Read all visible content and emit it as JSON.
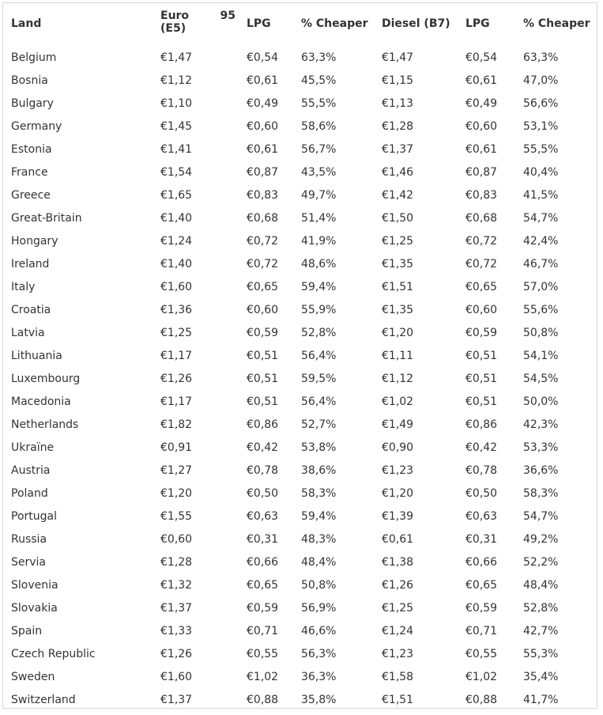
{
  "headers": {
    "land": "Land",
    "euro_a": "Euro",
    "euro_b": "95",
    "euro_c": "(E5)",
    "lpg1": "LPG",
    "cheaper1": "% Cheaper",
    "diesel": "Diesel (B7)",
    "lpg2": "LPG",
    "cheaper2": "% Cheaper"
  },
  "rows": [
    [
      "Belgium",
      "€1,47",
      "€0,54",
      "63,3%",
      "€1,47",
      "€0,54",
      "63,3%"
    ],
    [
      "Bosnia",
      "€1,12",
      "€0,61",
      "45,5%",
      "€1,15",
      "€0,61",
      "47,0%"
    ],
    [
      "Bulgary",
      "€1,10",
      "€0,49",
      "55,5%",
      "€1,13",
      "€0,49",
      "56,6%"
    ],
    [
      "Germany",
      "€1,45",
      "€0,60",
      "58,6%",
      "€1,28",
      "€0,60",
      "53,1%"
    ],
    [
      "Estonia",
      "€1,41",
      "€0,61",
      "56,7%",
      "€1,37",
      "€0,61",
      "55,5%"
    ],
    [
      "France",
      "€1,54",
      "€0,87",
      "43,5%",
      "€1,46",
      "€0,87",
      "40,4%"
    ],
    [
      "Greece",
      "€1,65",
      "€0,83",
      "49,7%",
      "€1,42",
      "€0,83",
      "41,5%"
    ],
    [
      "Great-Britain",
      "€1,40",
      "€0,68",
      "51,4%",
      "€1,50",
      "€0,68",
      "54,7%"
    ],
    [
      "Hongary",
      "€1,24",
      "€0,72",
      "41,9%",
      "€1,25",
      "€0,72",
      "42,4%"
    ],
    [
      "Ireland",
      "€1,40",
      "€0,72",
      "48,6%",
      "€1,35",
      "€0,72",
      "46,7%"
    ],
    [
      "Italy",
      "€1,60",
      "€0,65",
      "59,4%",
      "€1,51",
      "€0,65",
      "57,0%"
    ],
    [
      "Croatia",
      "€1,36",
      "€0,60",
      "55,9%",
      "€1,35",
      "€0,60",
      "55,6%"
    ],
    [
      "Latvia",
      "€1,25",
      "€0,59",
      "52,8%",
      "€1,20",
      "€0,59",
      "50,8%"
    ],
    [
      "Lithuania",
      "€1,17",
      "€0,51",
      "56,4%",
      "€1,11",
      "€0,51",
      "54,1%"
    ],
    [
      "Luxembourg",
      "€1,26",
      "€0,51",
      "59,5%",
      "€1,12",
      "€0,51",
      "54,5%"
    ],
    [
      "Macedonia",
      "€1,17",
      "€0,51",
      "56,4%",
      "€1,02",
      "€0,51",
      "50,0%"
    ],
    [
      "Netherlands",
      "€1,82",
      "€0,86",
      "52,7%",
      "€1,49",
      "€0,86",
      "42,3%"
    ],
    [
      "Ukraïne",
      "€0,91",
      "€0,42",
      "53,8%",
      "€0,90",
      "€0,42",
      "53,3%"
    ],
    [
      "Austria",
      "€1,27",
      "€0,78",
      "38,6%",
      "€1,23",
      "€0,78",
      "36,6%"
    ],
    [
      "Poland",
      "€1,20",
      "€0,50",
      "58,3%",
      "€1,20",
      "€0,50",
      "58,3%"
    ],
    [
      "Portugal",
      "€1,55",
      "€0,63",
      "59,4%",
      "€1,39",
      "€0,63",
      "54,7%"
    ],
    [
      "Russia",
      "€0,60",
      "€0,31",
      "48,3%",
      "€0,61",
      "€0,31",
      "49,2%"
    ],
    [
      "Servia",
      "€1,28",
      "€0,66",
      "48,4%",
      "€1,38",
      "€0,66",
      "52,2%"
    ],
    [
      "Slovenia",
      "€1,32",
      "€0,65",
      "50,8%",
      "€1,26",
      "€0,65",
      "48,4%"
    ],
    [
      "Slovakia",
      "€1,37",
      "€0,59",
      "56,9%",
      "€1,25",
      "€0,59",
      "52,8%"
    ],
    [
      "Spain",
      "€1,33",
      "€0,71",
      "46,6%",
      "€1,24",
      "€0,71",
      "42,7%"
    ],
    [
      "Czech Republic",
      "€1,26",
      "€0,55",
      "56,3%",
      "€1,23",
      "€0,55",
      "55,3%"
    ],
    [
      "Sweden",
      "€1,60",
      "€1,02",
      "36,3%",
      "€1,58",
      "€1,02",
      "35,4%"
    ],
    [
      "Switzerland",
      "€1,37",
      "€0,88",
      "35,8%",
      "€1,51",
      "€0,88",
      "41,7%"
    ]
  ]
}
